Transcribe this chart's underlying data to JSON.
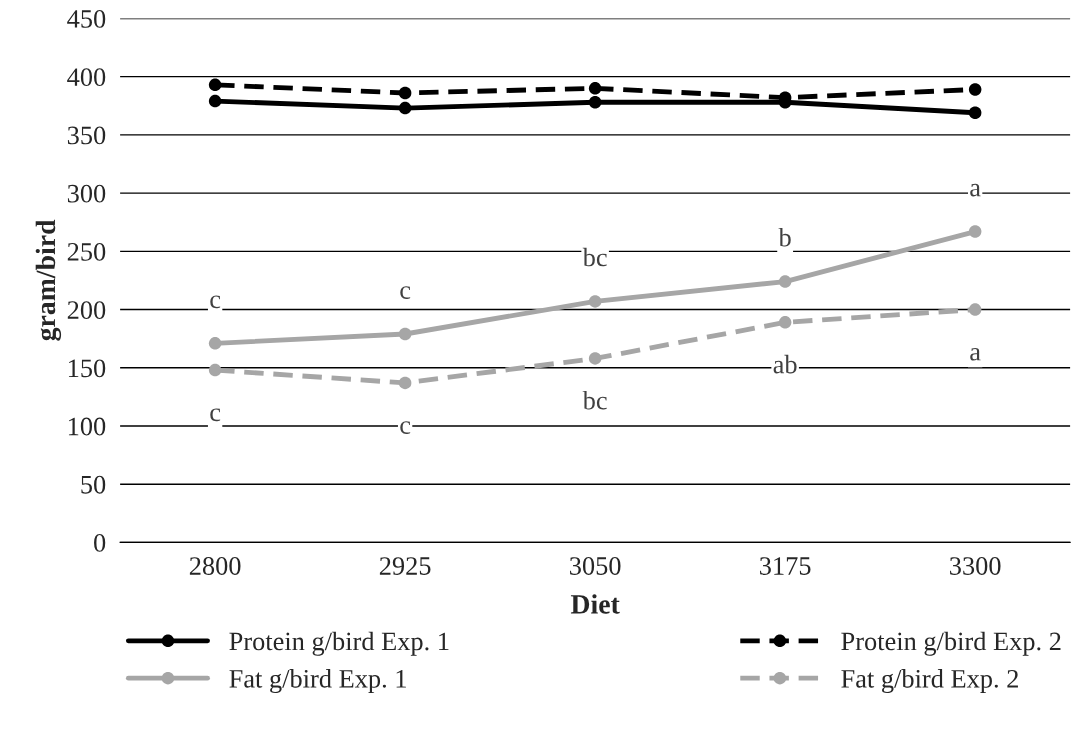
{
  "chart_data": {
    "type": "line",
    "xlabel": "Diet",
    "ylabel": "gram/bird",
    "categories": [
      "2800",
      "2925",
      "3050",
      "3175",
      "3300"
    ],
    "series": [
      {
        "name": "Protein g/bird Exp. 1",
        "color": "#000000",
        "line_style": "solid",
        "values": [
          379,
          373,
          378,
          378,
          369
        ]
      },
      {
        "name": "Protein g/bird Exp. 2",
        "color": "#000000",
        "line_style": "dashed",
        "values": [
          393,
          386,
          390,
          382,
          389
        ]
      },
      {
        "name": "Fat g/bird Exp. 1",
        "color": "#a6a6a6",
        "line_style": "solid",
        "values": [
          171,
          179,
          207,
          224,
          267
        ]
      },
      {
        "name": "Fat g/bird Exp. 2",
        "color": "#a6a6a6",
        "line_style": "dashed",
        "values": [
          148,
          137,
          158,
          189,
          200
        ]
      }
    ],
    "ylim": [
      0,
      450
    ],
    "yticks": [
      0,
      50,
      100,
      150,
      200,
      250,
      300,
      350,
      400,
      450
    ],
    "grid": "y",
    "legend": "bottom",
    "marker": "circle",
    "annotations": [
      {
        "text": "c",
        "x": "2800",
        "y": 171
      },
      {
        "text": "c",
        "x": "2925",
        "y": 179
      },
      {
        "text": "bc",
        "x": "3050",
        "y": 207
      },
      {
        "text": "b",
        "x": "3175",
        "y": 224
      },
      {
        "text": "a",
        "x": "3300",
        "y": 267
      },
      {
        "text": "c",
        "x": "2800",
        "y": 148
      },
      {
        "text": "c",
        "x": "2925",
        "y": 137
      },
      {
        "text": "bc",
        "x": "3050",
        "y": 158
      },
      {
        "text": "ab",
        "x": "3175",
        "y": 189
      },
      {
        "text": "a",
        "x": "3300",
        "y": 200
      }
    ]
  }
}
